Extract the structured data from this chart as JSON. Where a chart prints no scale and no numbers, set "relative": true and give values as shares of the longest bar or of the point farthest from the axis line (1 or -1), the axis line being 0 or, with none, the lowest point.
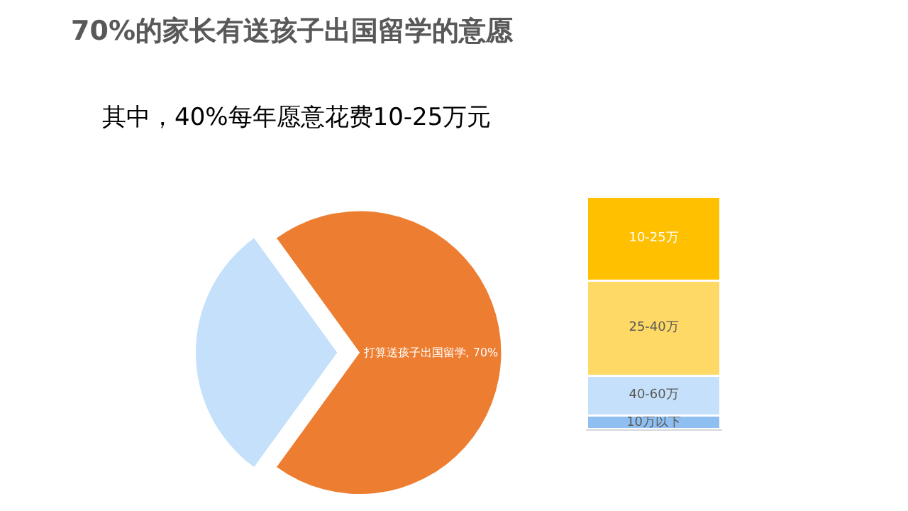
{
  "chart_data": [
    {
      "type": "pie",
      "title": "70%的家长有送孩子出国留学的意愿",
      "subtitle": "其中，40%每年愿意花费10-25万元",
      "categories": [
        "打算送孩子出国留学, 70%",
        null
      ],
      "values": [
        70,
        30
      ],
      "colors": [
        "#ed7d31",
        "#c5e0fa"
      ]
    },
    {
      "type": "bar",
      "stacked": true,
      "relative": true,
      "categories": [
        null
      ],
      "series": [
        {
          "name": "10万以下",
          "color": "#8fbff0",
          "values": [
            0.06
          ]
        },
        {
          "name": "40-60万",
          "color": "#c5e0fa",
          "values": [
            0.17
          ]
        },
        {
          "name": "25-40万",
          "color": "#ffd966",
          "values": [
            0.41
          ]
        },
        {
          "name": "10-25万",
          "color": "#ffc000",
          "values": [
            0.36
          ]
        }
      ]
    }
  ]
}
